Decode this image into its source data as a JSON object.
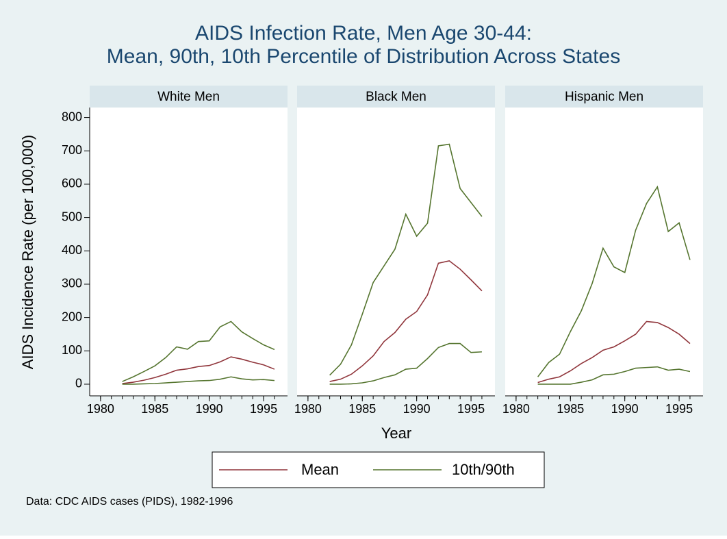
{
  "chart_data": {
    "type": "line",
    "title": [
      "AIDS Infection Rate, Men Age 30-44:",
      "Mean, 90th, 10th Percentile of Distribution Across States"
    ],
    "x_label": "Year",
    "y_label": "AIDS Incidence Rate (per 100,000)",
    "note": "Data: CDC AIDS cases (PIDS), 1982-1996",
    "x": [
      1982,
      1983,
      1984,
      1985,
      1986,
      1987,
      1988,
      1989,
      1990,
      1991,
      1992,
      1993,
      1994,
      1995,
      1996
    ],
    "xlim": [
      1979,
      1997.2
    ],
    "xticks": [
      1980,
      1985,
      1990,
      1995
    ],
    "xminor_ticks": [
      1980,
      1981,
      1982,
      1983,
      1984,
      1985,
      1986,
      1987,
      1988,
      1989,
      1990,
      1991,
      1992,
      1993,
      1994,
      1995,
      1996
    ],
    "ylim": [
      -35,
      830
    ],
    "yticks": [
      0,
      100,
      200,
      300,
      400,
      500,
      600,
      700,
      800
    ],
    "grid": false,
    "panels": [
      {
        "title": "White Men",
        "series": [
          {
            "name": "Mean",
            "color": "#90353b",
            "values": [
              2,
              6,
              12,
              20,
              30,
              42,
              46,
              53,
              56,
              67,
              82,
              75,
              66,
              58,
              45
            ]
          },
          {
            "name": "10th/90th",
            "color": "#55752f",
            "values": [
              8,
              22,
              38,
              55,
              80,
              112,
              105,
              128,
              130,
              172,
              188,
              157,
              137,
              118,
              104
            ],
            "lower": [
              0,
              0,
              1,
              2,
              4,
              6,
              8,
              10,
              11,
              15,
              22,
              16,
              13,
              14,
              11
            ]
          }
        ]
      },
      {
        "title": "Black Men",
        "series": [
          {
            "name": "Mean",
            "color": "#90353b",
            "values": [
              8,
              15,
              30,
              55,
              85,
              128,
              155,
              195,
              218,
              268,
              363,
              370,
              345,
              313,
              280
            ]
          },
          {
            "name": "10th/90th",
            "color": "#55752f",
            "values": [
              27,
              60,
              118,
              210,
              305,
              355,
              405,
              510,
              444,
              483,
              715,
              720,
              587,
              545,
              503
            ],
            "lower": [
              0,
              0,
              1,
              4,
              10,
              20,
              28,
              45,
              48,
              77,
              110,
              122,
              122,
              95,
              97
            ]
          }
        ]
      },
      {
        "title": "Hispanic Men",
        "series": [
          {
            "name": "Mean",
            "color": "#90353b",
            "values": [
              5,
              15,
              22,
              40,
              62,
              80,
              102,
              112,
              130,
              150,
              188,
              185,
              170,
              150,
              122
            ]
          },
          {
            "name": "10th/90th",
            "color": "#55752f",
            "values": [
              22,
              65,
              90,
              158,
              220,
              302,
              408,
              352,
              335,
              462,
              542,
              592,
              458,
              484,
              373
            ],
            "lower": [
              0,
              0,
              0,
              0,
              6,
              13,
              28,
              30,
              38,
              48,
              50,
              52,
              42,
              45,
              38
            ]
          }
        ]
      }
    ]
  }
}
